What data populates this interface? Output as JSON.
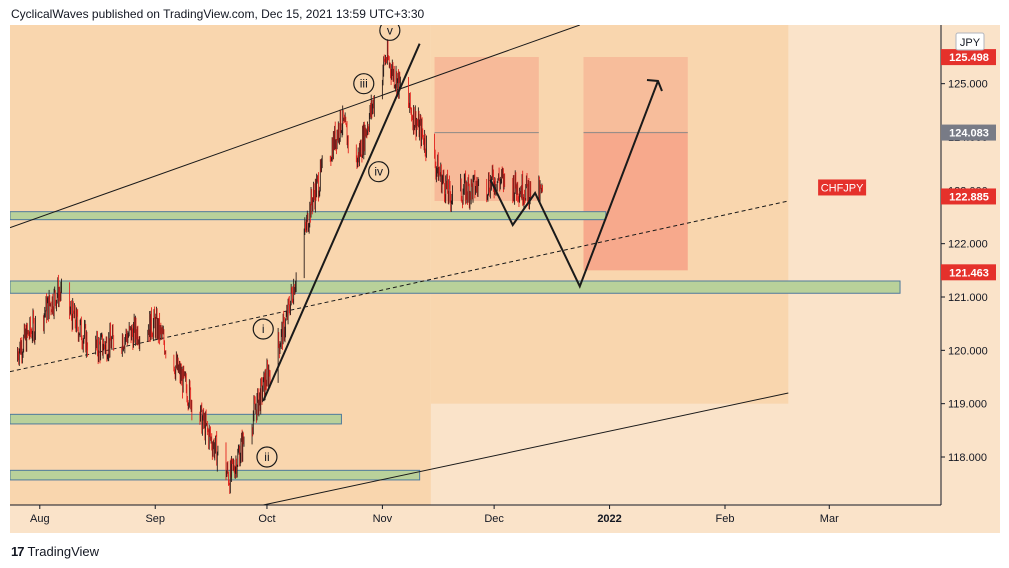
{
  "header": {
    "publisher": "CyclicalWaves published on TradingView.com, Dec 15, 2021 13:59 UTC+3:30"
  },
  "footer": {
    "brand": "TradingView",
    "logo_text": "17"
  },
  "colors": {
    "background": "#fae3c9",
    "zone_bg": "#f9d6ae",
    "band": "#b9d19a",
    "band_border": "#4f7a9c",
    "candle_down": "#e3231e",
    "candle_up": "#2b1d1a",
    "target_box": "#f59980",
    "price_red": "#e5312b",
    "price_gray": "#787b86"
  },
  "chart_data": {
    "type": "candlestick",
    "symbol": "CHFJPY",
    "currency_badge": "JPY",
    "x_ticks": [
      "Aug",
      "Sep",
      "Oct",
      "Nov",
      "Dec",
      "2022",
      "Feb",
      "Mar"
    ],
    "y_ticks": [
      "118.000",
      "119.000",
      "120.000",
      "121.000",
      "122.000",
      "123.000",
      "124.000",
      "125.000"
    ],
    "ylim": [
      117.1,
      126.1
    ],
    "xlim": [
      "2021-07-24",
      "2022-03-31"
    ],
    "price_labels": [
      {
        "text": "125.498",
        "value": 125.498,
        "style": "red"
      },
      {
        "text": "124.083",
        "value": 124.083,
        "style": "gray"
      },
      {
        "text": "122.885",
        "value": 122.885,
        "style": "red"
      },
      {
        "text": "121.463",
        "value": 121.463,
        "style": "red"
      }
    ],
    "last_price": 122.885,
    "series_key_points": [
      {
        "date": "2021-07-24",
        "value": 119.8
      },
      {
        "date": "2021-08-06",
        "value": 121.1
      },
      {
        "date": "2021-08-15",
        "value": 120.0
      },
      {
        "date": "2021-09-01",
        "value": 120.5
      },
      {
        "date": "2021-09-21",
        "value": 117.6
      },
      {
        "date": "2021-09-29",
        "value": 119.1
      },
      {
        "date": "2021-10-06",
        "value": 120.5
      },
      {
        "date": "2021-10-13",
        "value": 122.8
      },
      {
        "date": "2021-10-21",
        "value": 124.3
      },
      {
        "date": "2021-10-25",
        "value": 123.5
      },
      {
        "date": "2021-11-02",
        "value": 125.5
      },
      {
        "date": "2021-11-12",
        "value": 124.0
      },
      {
        "date": "2021-11-19",
        "value": 122.9
      },
      {
        "date": "2021-12-02",
        "value": 123.2
      },
      {
        "date": "2021-12-14",
        "value": 122.9
      }
    ],
    "wave_labels": [
      "i",
      "ii",
      "iii",
      "iv",
      "v"
    ],
    "legend": "none",
    "grid": false
  }
}
